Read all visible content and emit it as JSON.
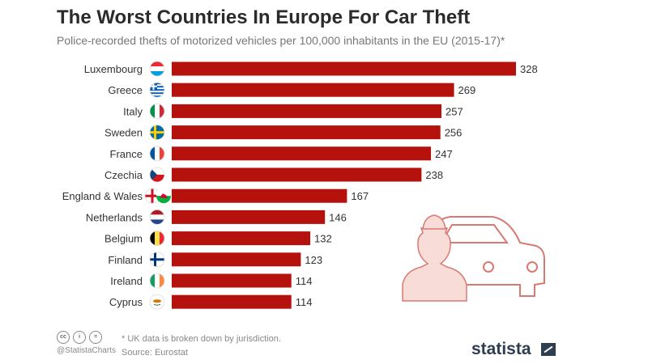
{
  "header": {
    "title": "The Worst Countries In Europe For Car Theft",
    "subtitle": "Police-recorded thefts of motorized vehicles per 100,000 inhabitants in the EU (2015-17)*"
  },
  "colors": {
    "bar": "#b5120e",
    "illustration": "#f7dcd8",
    "illustration_stroke": "#d97a72"
  },
  "chart_data": {
    "type": "bar",
    "orientation": "horizontal",
    "categories": [
      "Luxembourg",
      "Greece",
      "Italy",
      "Sweden",
      "France",
      "Czechia",
      "England & Wales",
      "Netherlands",
      "Belgium",
      "Finland",
      "Ireland",
      "Cyprus"
    ],
    "values": [
      328,
      269,
      257,
      256,
      247,
      238,
      167,
      146,
      132,
      123,
      114,
      114
    ],
    "flag_icons": [
      "flag-luxembourg-icon",
      "flag-greece-icon",
      "flag-italy-icon",
      "flag-sweden-icon",
      "flag-france-icon",
      "flag-czechia-icon",
      "flag-england-wales-icon",
      "flag-netherlands-icon",
      "flag-belgium-icon",
      "flag-finland-icon",
      "flag-ireland-icon",
      "flag-cyprus-icon"
    ],
    "xlim": [
      0,
      328
    ],
    "grid": false,
    "legend": "none"
  },
  "footer": {
    "license_icons": [
      "cc",
      "i",
      "="
    ],
    "handle": "@StatistaCharts",
    "note": "* UK data is broken down by jurisdiction.",
    "source": "Source: Eurostat",
    "brand": "statista"
  }
}
